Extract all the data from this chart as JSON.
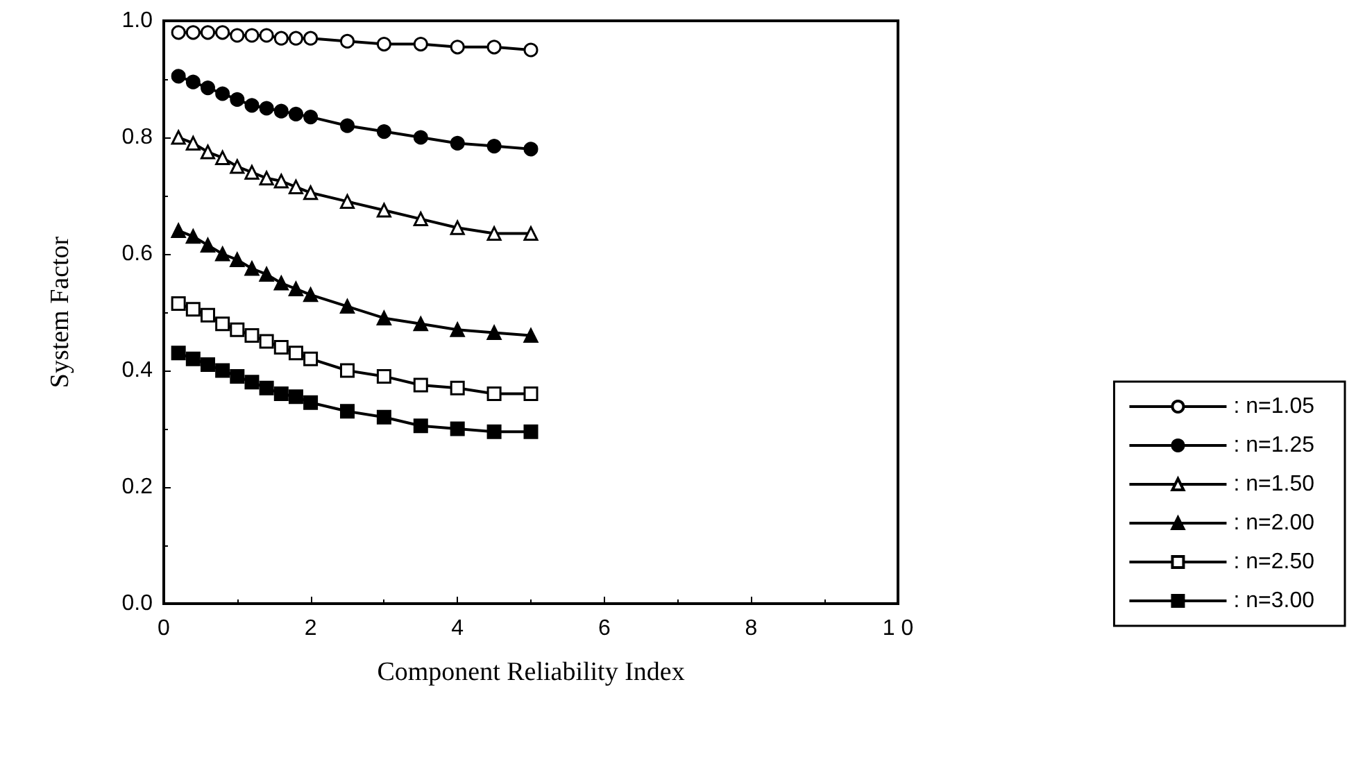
{
  "chart_data": {
    "type": "line",
    "xlabel": "Component Reliability Index",
    "ylabel": "System Factor",
    "x": [
      0.2,
      0.4,
      0.6,
      0.8,
      1.0,
      1.2,
      1.4,
      1.6,
      1.8,
      2.0,
      2.5,
      3.0,
      3.5,
      4.0,
      4.5,
      5.0
    ],
    "xlim": [
      0,
      10
    ],
    "xticks": [
      0,
      2,
      4,
      6,
      8,
      {
        "value": 10,
        "label": "1 0"
      }
    ],
    "ylim": [
      0,
      1
    ],
    "yticks": [
      {
        "value": 0,
        "label": "0.0"
      },
      0.2,
      0.4,
      0.6,
      0.8,
      {
        "value": 1,
        "label": "1.0"
      }
    ],
    "grid": false,
    "legend": "right",
    "line_style": "solid",
    "series": [
      {
        "name": ": n=1.05",
        "color": "#000000",
        "marker": "circle",
        "values": [
          0.98,
          0.98,
          0.98,
          0.98,
          0.975,
          0.975,
          0.975,
          0.97,
          0.97,
          0.97,
          0.965,
          0.96,
          0.96,
          0.955,
          0.955,
          0.95
        ]
      },
      {
        "name": ": n=1.25",
        "color": "#000000",
        "marker": "circle",
        "values": [
          0.905,
          0.895,
          0.885,
          0.875,
          0.865,
          0.855,
          0.85,
          0.845,
          0.84,
          0.835,
          0.82,
          0.81,
          0.8,
          0.79,
          0.785,
          0.78
        ]
      },
      {
        "name": ": n=1.50",
        "color": "#000000",
        "marker": "triangle",
        "values": [
          0.8,
          0.79,
          0.775,
          0.765,
          0.75,
          0.74,
          0.73,
          0.725,
          0.715,
          0.705,
          0.69,
          0.675,
          0.66,
          0.645,
          0.635,
          0.635
        ]
      },
      {
        "name": ": n=2.00",
        "color": "#000000",
        "marker": "triangle",
        "values": [
          0.64,
          0.63,
          0.615,
          0.6,
          0.59,
          0.575,
          0.565,
          0.55,
          0.54,
          0.53,
          0.51,
          0.49,
          0.48,
          0.47,
          0.465,
          0.46
        ]
      },
      {
        "name": ": n=2.50",
        "color": "#000000",
        "marker": "square",
        "values": [
          0.515,
          0.505,
          0.495,
          0.48,
          0.47,
          0.46,
          0.45,
          0.44,
          0.43,
          0.42,
          0.4,
          0.39,
          0.375,
          0.37,
          0.36,
          0.36
        ]
      },
      {
        "name": ": n=3.00",
        "color": "#000000",
        "marker": "square",
        "values": [
          0.43,
          0.42,
          0.41,
          0.4,
          0.39,
          0.38,
          0.37,
          0.36,
          0.355,
          0.345,
          0.33,
          0.32,
          0.305,
          0.3,
          0.295,
          0.295
        ]
      }
    ]
  }
}
